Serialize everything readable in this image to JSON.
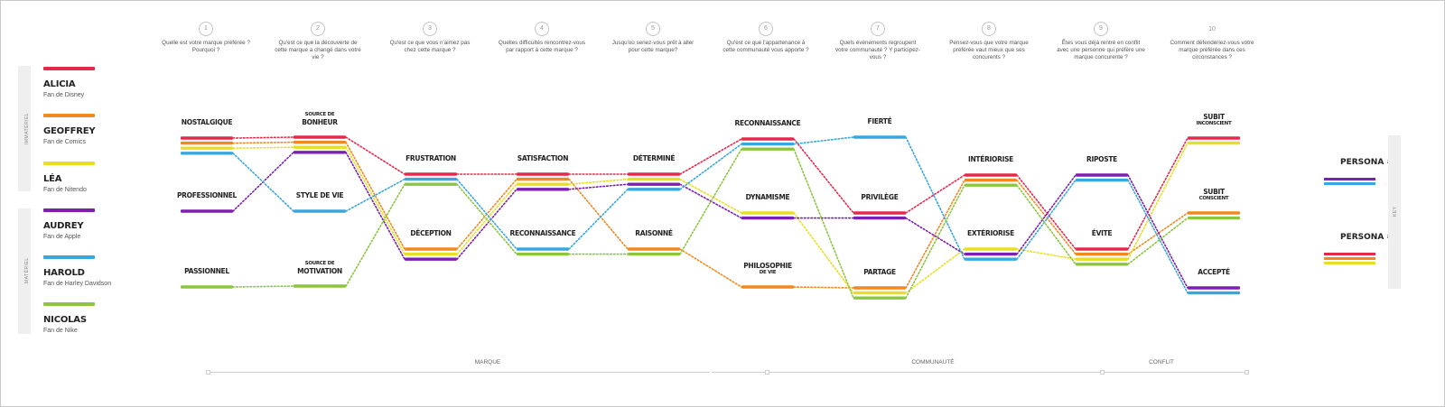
{
  "colors": {
    "alicia": "#e5294d",
    "geoffrey": "#f0891f",
    "lea": "#e8df20",
    "audrey": "#7d1fb0",
    "harold": "#38a7e0",
    "nicolas": "#8cc63f"
  },
  "legend_groups": [
    {
      "label": "IMMATÉRIEL"
    },
    {
      "label": "MATÉRIEL"
    }
  ],
  "personas": [
    {
      "id": "alicia",
      "name": "ALICIA",
      "desc": "Fan de Disney"
    },
    {
      "id": "geoffrey",
      "name": "GEOFFREY",
      "desc": "Fan de Comics"
    },
    {
      "id": "lea",
      "name": "LÉA",
      "desc": "Fan de Nitendo"
    },
    {
      "id": "audrey",
      "name": "AUDREY",
      "desc": "Fan de Apple"
    },
    {
      "id": "harold",
      "name": "HAROLD",
      "desc": "Fan de Harley Davidson"
    },
    {
      "id": "nicolas",
      "name": "NICOLAS",
      "desc": "Fan de Nike"
    }
  ],
  "questions": [
    {
      "num": "1",
      "text": "Quelle est votre marque préférée ? Pourquoi ?"
    },
    {
      "num": "2",
      "text": "Qu'est ce que la découverte de cette marque a changé dans votre vie ?"
    },
    {
      "num": "3",
      "text": "Qu'est ce que vous n'aimez pas chez cette marque ?"
    },
    {
      "num": "4",
      "text": "Quelles difficultés rencontrez-vous par rapport à cette marque ?"
    },
    {
      "num": "5",
      "text": "Jusqu'où seriez-vous prêt à aller pour cette marque?"
    },
    {
      "num": "6",
      "text": "Qu'est ce que l'appartenance à cette communauté vous apporte ?"
    },
    {
      "num": "7",
      "text": "Quels évènements regroupent votre communauté ? Y participez-vous ?"
    },
    {
      "num": "8",
      "text": "Pensez-vous que votre marque préférée vaut mieux que ses concurents ?"
    },
    {
      "num": "9",
      "text": "Êtes vous déjà rentré en conflit avec une personne qui préfère une marque concurente ?"
    },
    {
      "num": "10",
      "text": "Comment défenderiez-vous votre marque préférée dans ces circonstances ?"
    }
  ],
  "columns": [
    {
      "nodes": [
        {
          "title": "NOSTALGIQUE",
          "sub": "",
          "members": [
            "alicia",
            "geoffrey",
            "lea",
            "harold"
          ]
        },
        {
          "title": "PROFESSIONNEL",
          "sub": "",
          "members": [
            "audrey"
          ]
        },
        {
          "title": "PASSIONNEL",
          "sub": "",
          "members": [
            "nicolas"
          ]
        }
      ]
    },
    {
      "nodes": [
        {
          "title": "BONHEUR",
          "sub": "SOURCE DE",
          "members": [
            "alicia",
            "geoffrey",
            "lea",
            "audrey"
          ]
        },
        {
          "title": "STYLE DE VIE",
          "sub": "",
          "members": [
            "harold"
          ]
        },
        {
          "title": "MOTIVATION",
          "sub": "SOURCE DE",
          "members": [
            "nicolas"
          ]
        }
      ]
    },
    {
      "nodes": [
        {
          "title": "FRUSTRATION",
          "sub": "",
          "members": [
            "alicia",
            "harold",
            "nicolas"
          ]
        },
        {
          "title": "DÉCEPTION",
          "sub": "",
          "members": [
            "geoffrey",
            "lea",
            "audrey"
          ]
        }
      ]
    },
    {
      "nodes": [
        {
          "title": "SATISFACTION",
          "sub": "",
          "members": [
            "alicia",
            "geoffrey",
            "lea",
            "audrey"
          ]
        },
        {
          "title": "RECONNAISSANCE",
          "sub": "",
          "members": [
            "harold",
            "nicolas"
          ]
        }
      ]
    },
    {
      "nodes": [
        {
          "title": "DÉTERMINÉ",
          "sub": "",
          "members": [
            "alicia",
            "lea",
            "audrey",
            "harold"
          ]
        },
        {
          "title": "RAISONNÉ",
          "sub": "",
          "members": [
            "geoffrey",
            "nicolas"
          ]
        }
      ]
    },
    {
      "nodes": [
        {
          "title": "RECONNAISSANCE",
          "sub": "",
          "members": [
            "alicia",
            "harold",
            "nicolas"
          ]
        },
        {
          "title": "DYNAMISME",
          "sub": "",
          "members": [
            "lea",
            "audrey"
          ]
        },
        {
          "title": "PHILOSOPHIE",
          "sub": "DE VIE",
          "subAfter": true,
          "members": [
            "geoffrey"
          ]
        }
      ]
    },
    {
      "nodes": [
        {
          "title": "FIERTÉ",
          "sub": "",
          "members": [
            "harold"
          ]
        },
        {
          "title": "PRIVILÈGE",
          "sub": "",
          "members": [
            "alicia",
            "audrey"
          ]
        },
        {
          "title": "PARTAGE",
          "sub": "",
          "members": [
            "geoffrey",
            "lea",
            "nicolas"
          ]
        }
      ]
    },
    {
      "nodes": [
        {
          "title": "INTÉRIORISE",
          "sub": "",
          "members": [
            "alicia",
            "geoffrey",
            "nicolas"
          ]
        },
        {
          "title": "EXTÉRIORISE",
          "sub": "",
          "members": [
            "lea",
            "audrey",
            "harold"
          ]
        }
      ]
    },
    {
      "nodes": [
        {
          "title": "RIPOSTE",
          "sub": "",
          "members": [
            "audrey",
            "harold"
          ]
        },
        {
          "title": "ÉVITE",
          "sub": "",
          "members": [
            "alicia",
            "geoffrey",
            "lea",
            "nicolas"
          ]
        }
      ]
    },
    {
      "nodes": [
        {
          "title": "SUBIT",
          "sub": "INCONSCIENT",
          "subAfter": true,
          "members": [
            "alicia",
            "lea"
          ]
        },
        {
          "title": "SUBIT",
          "sub": "CONSCIENT",
          "subAfter": true,
          "members": [
            "geoffrey",
            "nicolas"
          ]
        },
        {
          "title": "ACCEPTÉ",
          "sub": "",
          "members": [
            "audrey",
            "harold"
          ]
        }
      ]
    }
  ],
  "sections": [
    {
      "label": "MARQUE"
    },
    {
      "label": "COMMUNAUTÉ"
    },
    {
      "label": "CONFLIT"
    }
  ],
  "summary_personas": [
    {
      "title": "PERSONA #1",
      "members": [
        "audrey",
        "harold"
      ]
    },
    {
      "title": "PERSONA #2",
      "members": [
        "alicia",
        "geoffrey",
        "lea"
      ]
    }
  ],
  "side_tab_label": "KEY"
}
